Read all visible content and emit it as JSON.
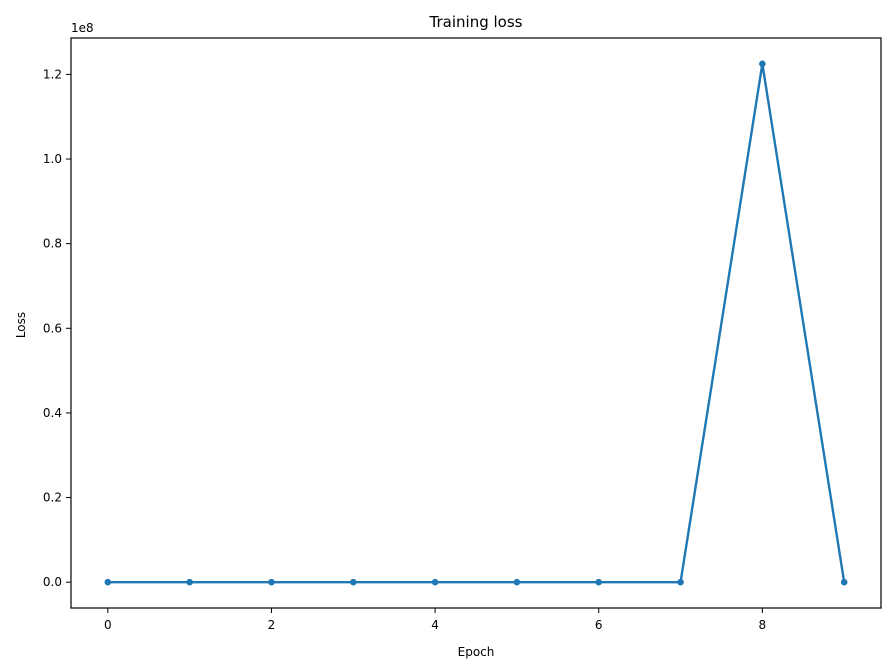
{
  "chart_data": {
    "type": "line",
    "title": "Training loss",
    "xlabel": "Epoch",
    "ylabel": "Loss",
    "y_offset_label": "1e8",
    "x": [
      0,
      1,
      2,
      3,
      4,
      5,
      6,
      7,
      8,
      9
    ],
    "series": [
      {
        "values": [
          0,
          0,
          0,
          0,
          0,
          0,
          0,
          0,
          122500000,
          0
        ]
      }
    ],
    "xlim": [
      -0.45,
      9.45
    ],
    "ylim": [
      -6100000,
      128600000
    ],
    "xticks": [
      0,
      2,
      4,
      6,
      8
    ],
    "xtick_labels": [
      "0",
      "2",
      "4",
      "6",
      "8"
    ],
    "yticks": [
      0,
      20000000,
      40000000,
      60000000,
      80000000,
      100000000,
      120000000
    ],
    "ytick_labels": [
      "0.0",
      "0.2",
      "0.4",
      "0.6",
      "0.8",
      "1.0",
      "1.2"
    ],
    "grid": false,
    "legend": "none",
    "color": "#1f77b4"
  }
}
